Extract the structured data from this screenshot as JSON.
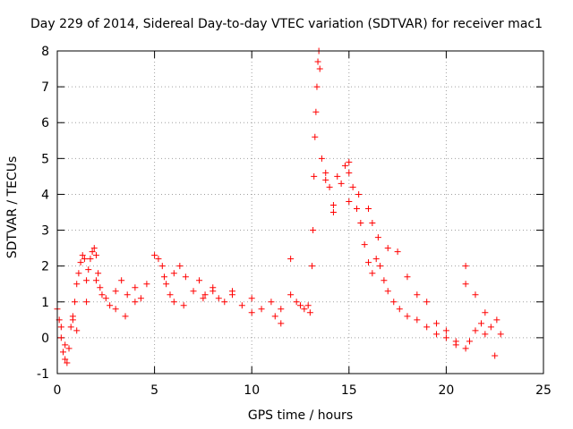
{
  "chart_data": {
    "type": "scatter",
    "title": "Day 229 of 2014, Sidereal Day-to-day VTEC variation (SDTVAR) for receiver mac1",
    "xlabel": "GPS time / hours",
    "ylabel": "SDTVAR / TECUs",
    "xlim": [
      0,
      25
    ],
    "ylim": [
      -1,
      8
    ],
    "xticks": [
      0,
      5,
      10,
      15,
      20,
      25
    ],
    "yticks": [
      -1,
      0,
      1,
      2,
      3,
      4,
      5,
      6,
      7,
      8
    ],
    "xtick_labels": [
      "0",
      "5",
      "10",
      "15",
      "20",
      "25"
    ],
    "ytick_labels": [
      "-1",
      "0",
      "1",
      "2",
      "3",
      "4",
      "5",
      "6",
      "7",
      "8"
    ],
    "grid": true,
    "marker": "+",
    "series": [
      {
        "name": "SDTVAR",
        "color": "#ff0000",
        "x": [
          0.0,
          0.1,
          0.2,
          0.3,
          0.4,
          0.5,
          0.6,
          0.7,
          0.8,
          0.9,
          1.0,
          1.1,
          1.2,
          1.3,
          1.4,
          1.5,
          1.6,
          1.7,
          1.8,
          1.9,
          2.0,
          2.1,
          2.2,
          2.3,
          2.5,
          2.7,
          3.0,
          3.3,
          3.6,
          4.0,
          4.3,
          4.6,
          5.0,
          5.2,
          5.4,
          5.6,
          5.8,
          6.0,
          6.3,
          6.6,
          7.0,
          7.3,
          7.6,
          8.0,
          8.3,
          8.6,
          9.0,
          9.5,
          10.0,
          10.5,
          11.0,
          11.2,
          11.5,
          12.0,
          12.3,
          12.5,
          12.7,
          12.9,
          13.0,
          13.1,
          13.15,
          13.2,
          13.25,
          13.3,
          13.35,
          13.4,
          13.45,
          13.5,
          13.6,
          13.8,
          14.0,
          14.2,
          14.4,
          14.6,
          14.8,
          15.0,
          15.2,
          15.4,
          15.6,
          15.8,
          16.0,
          16.2,
          16.4,
          16.6,
          16.8,
          17.0,
          17.3,
          17.6,
          18.0,
          18.5,
          19.0,
          19.5,
          20.0,
          20.5,
          21.0,
          21.2,
          21.5,
          21.8,
          22.0,
          22.3,
          22.6,
          22.8,
          1.5,
          3.0,
          5.5,
          8.0,
          15.0,
          16.2,
          17.0,
          18.0,
          19.0,
          20.0,
          21.0,
          22.0,
          0.4,
          1.0,
          4.0,
          6.5,
          9.0,
          11.5,
          14.2,
          15.5,
          16.5,
          18.5,
          20.5,
          21.5,
          0.2,
          0.8,
          2.0,
          3.5,
          6.0,
          7.5,
          10.0,
          12.0,
          13.8,
          15.0,
          16.0,
          17.5,
          19.5,
          21.0,
          22.5
        ],
        "y": [
          0.8,
          0.5,
          0.0,
          -0.4,
          -0.6,
          -0.7,
          -0.3,
          0.3,
          0.6,
          1.0,
          1.5,
          1.8,
          2.1,
          2.3,
          2.2,
          1.6,
          1.9,
          2.2,
          2.4,
          2.5,
          2.3,
          1.8,
          1.4,
          1.2,
          1.1,
          0.9,
          1.3,
          1.6,
          1.2,
          1.0,
          1.1,
          1.5,
          2.3,
          2.2,
          2.0,
          1.5,
          1.2,
          1.8,
          2.0,
          1.7,
          1.3,
          1.6,
          1.2,
          1.4,
          1.1,
          1.0,
          1.2,
          0.9,
          1.1,
          0.8,
          1.0,
          0.6,
          0.8,
          1.2,
          1.0,
          0.9,
          0.8,
          0.9,
          0.7,
          2.0,
          3.0,
          4.5,
          5.6,
          6.3,
          7.0,
          7.7,
          8.0,
          7.5,
          5.0,
          4.6,
          4.2,
          3.7,
          4.5,
          4.3,
          4.8,
          4.6,
          4.2,
          3.6,
          3.2,
          2.6,
          2.1,
          1.8,
          2.2,
          2.0,
          1.6,
          1.3,
          1.0,
          0.8,
          0.6,
          0.5,
          0.3,
          0.1,
          0.0,
          -0.2,
          -0.3,
          -0.1,
          0.2,
          0.4,
          0.1,
          0.3,
          0.5,
          0.1,
          1.0,
          0.8,
          1.7,
          1.3,
          4.9,
          3.2,
          2.5,
          1.7,
          1.0,
          0.2,
          2.0,
          0.7,
          -0.2,
          0.2,
          1.4,
          0.9,
          1.3,
          0.4,
          3.5,
          4.0,
          2.8,
          1.2,
          -0.1,
          1.2,
          0.3,
          0.5,
          1.6,
          0.6,
          1.0,
          1.1,
          0.7,
          2.2,
          4.4,
          3.8,
          3.6,
          2.4,
          0.4,
          1.5,
          -0.5
        ]
      }
    ]
  }
}
